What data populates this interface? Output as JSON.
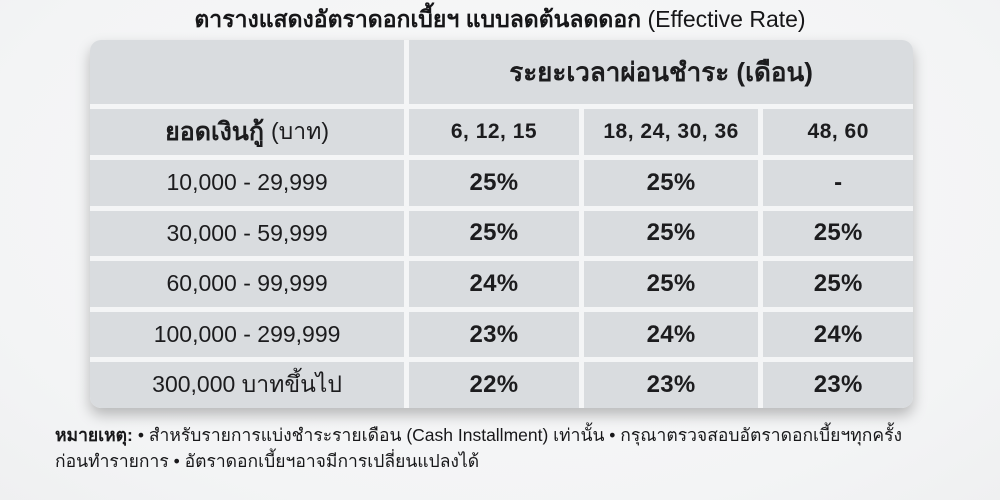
{
  "title": {
    "main": "ตารางแสดงอัตราดอกเบี้ยฯ แบบลดต้นลดดอก",
    "suffix": "(Effective Rate)"
  },
  "table": {
    "period_header": "ระยะเวลาผ่อนชำระ (เดือน)",
    "loan_header_main": "ยอดเงินกู้",
    "loan_header_unit": "(บาท)",
    "term_columns": [
      "6, 12, 15",
      "18, 24, 30, 36",
      "48, 60"
    ],
    "rows": [
      {
        "amount": "10,000 - 29,999",
        "rates": [
          "25%",
          "25%",
          "-"
        ]
      },
      {
        "amount": "30,000 - 59,999",
        "rates": [
          "25%",
          "25%",
          "25%"
        ]
      },
      {
        "amount": "60,000 - 99,999",
        "rates": [
          "24%",
          "25%",
          "25%"
        ]
      },
      {
        "amount": "100,000 - 299,999",
        "rates": [
          "23%",
          "24%",
          "24%"
        ]
      },
      {
        "amount": "300,000 บาทขึ้นไป",
        "rates": [
          "22%",
          "23%",
          "23%"
        ]
      }
    ]
  },
  "note": {
    "label": "หมายเหตุ:",
    "line1": "• สำหรับรายการแบ่งชำระรายเดือน (Cash Installment) เท่านั้น • กรุณาตรวจสอบอัตราดอกเบี้ยฯทุกครั้ง",
    "line2": "ก่อนทำรายการ • อัตราดอกเบี้ยฯอาจมีการเปลี่ยนแปลงได้"
  },
  "colors": {
    "cell_background": "#d9dcdf",
    "page_background": "#f5f6f7",
    "text": "#1c1c1e"
  },
  "chart_data": {
    "type": "table",
    "title": "ตารางแสดงอัตราดอกเบี้ยฯ แบบลดต้นลดดอก (Effective Rate)",
    "column_group_label": "ระยะเวลาผ่อนชำระ (เดือน)",
    "row_label": "ยอดเงินกู้ (บาท)",
    "columns": [
      "6, 12, 15",
      "18, 24, 30, 36",
      "48, 60"
    ],
    "rows": [
      {
        "loan_amount": "10,000 - 29,999",
        "rates_pct": [
          25,
          25,
          null
        ]
      },
      {
        "loan_amount": "30,000 - 59,999",
        "rates_pct": [
          25,
          25,
          25
        ]
      },
      {
        "loan_amount": "60,000 - 99,999",
        "rates_pct": [
          24,
          25,
          25
        ]
      },
      {
        "loan_amount": "100,000 - 299,999",
        "rates_pct": [
          23,
          24,
          24
        ]
      },
      {
        "loan_amount": "300,000 บาทขึ้นไป",
        "rates_pct": [
          22,
          23,
          23
        ]
      }
    ],
    "note": "หมายเหตุ: • สำหรับรายการแบ่งชำระรายเดือน (Cash Installment) เท่านั้น • กรุณาตรวจสอบอัตราดอกเบี้ยฯทุกครั้ง ก่อนทำรายการ • อัตราดอกเบี้ยฯอาจมีการเปลี่ยนแปลงได้"
  }
}
